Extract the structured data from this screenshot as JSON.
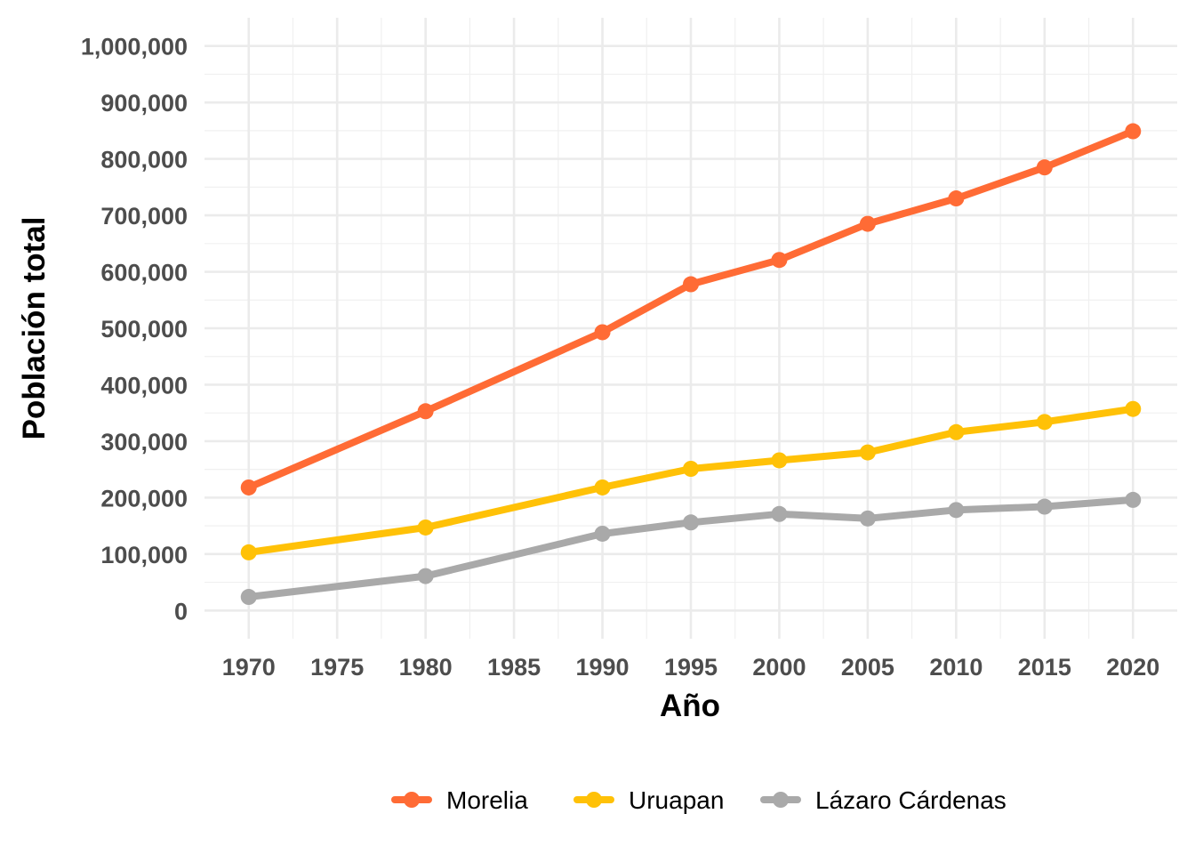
{
  "chart_data": {
    "type": "line",
    "title": "",
    "xlabel": "Año",
    "ylabel": "Población total",
    "x": [
      1970,
      1980,
      1990,
      1995,
      2000,
      2005,
      2010,
      2015,
      2020
    ],
    "x_ticks": [
      "1970",
      "1975",
      "1980",
      "1985",
      "1990",
      "1995",
      "2000",
      "2005",
      "2010",
      "2015",
      "2020"
    ],
    "y_ticks": [
      "0",
      "100,000",
      "200,000",
      "300,000",
      "400,000",
      "500,000",
      "600,000",
      "700,000",
      "800,000",
      "900,000",
      "1,000,000"
    ],
    "xlim": [
      1967.5,
      2022.5
    ],
    "ylim": [
      -50000,
      1050000
    ],
    "grid": true,
    "legend_position": "bottom",
    "series": [
      {
        "name": "Morelia",
        "color": "#ff6b35",
        "values": [
          218000,
          353000,
          493000,
          578000,
          621000,
          685000,
          730000,
          785000,
          849000
        ]
      },
      {
        "name": "Uruapan",
        "color": "#ffc107",
        "values": [
          103000,
          147000,
          218000,
          251000,
          266000,
          280000,
          316000,
          334000,
          357000
        ]
      },
      {
        "name": "Lázaro Cárdenas",
        "color": "#a9a9a9",
        "values": [
          24000,
          61000,
          136000,
          156000,
          171000,
          163000,
          178000,
          184000,
          196000
        ]
      }
    ]
  }
}
